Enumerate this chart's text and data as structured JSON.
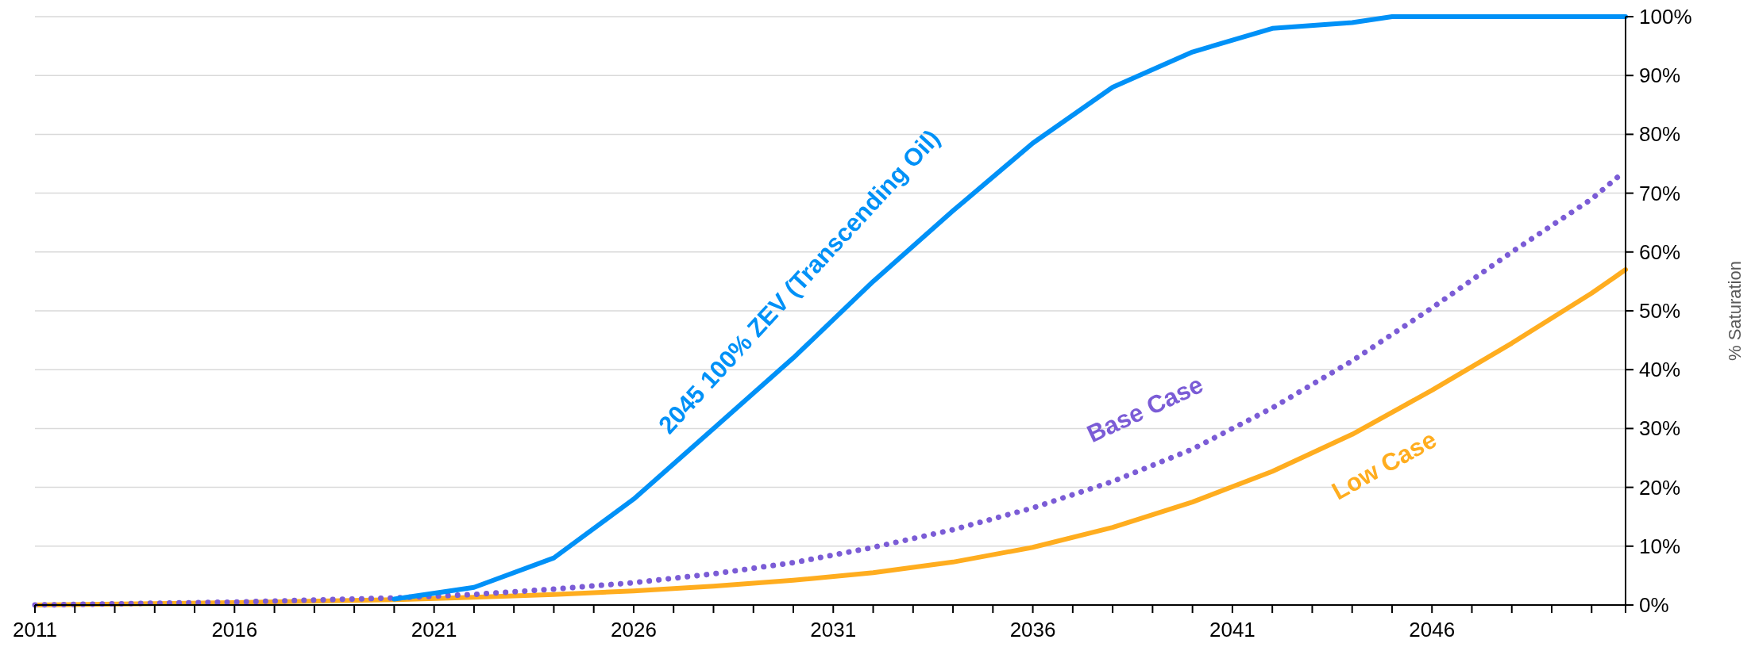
{
  "chart_data": {
    "type": "line",
    "ylabel": "% Saturation",
    "grid": "y",
    "marker": "none",
    "xlim": [
      2011,
      2050.85
    ],
    "ylim": [
      0,
      100
    ],
    "xticks": [
      2011,
      {
        "value": 2012,
        "label": null
      },
      {
        "value": 2013,
        "label": null
      },
      {
        "value": 2014,
        "label": null
      },
      {
        "value": 2015,
        "label": null
      },
      2016,
      {
        "value": 2017,
        "label": null
      },
      {
        "value": 2018,
        "label": null
      },
      {
        "value": 2019,
        "label": null
      },
      {
        "value": 2020,
        "label": null
      },
      2021,
      {
        "value": 2022,
        "label": null
      },
      {
        "value": 2023,
        "label": null
      },
      {
        "value": 2024,
        "label": null
      },
      {
        "value": 2025,
        "label": null
      },
      2026,
      {
        "value": 2027,
        "label": null
      },
      {
        "value": 2028,
        "label": null
      },
      {
        "value": 2029,
        "label": null
      },
      {
        "value": 2030,
        "label": null
      },
      2031,
      {
        "value": 2032,
        "label": null
      },
      {
        "value": 2033,
        "label": null
      },
      {
        "value": 2034,
        "label": null
      },
      {
        "value": 2035,
        "label": null
      },
      2036,
      {
        "value": 2037,
        "label": null
      },
      {
        "value": 2038,
        "label": null
      },
      {
        "value": 2039,
        "label": null
      },
      {
        "value": 2040,
        "label": null
      },
      2041,
      {
        "value": 2042,
        "label": null
      },
      {
        "value": 2043,
        "label": null
      },
      {
        "value": 2044,
        "label": null
      },
      {
        "value": 2045,
        "label": null
      },
      2046,
      {
        "value": 2047,
        "label": null
      },
      {
        "value": 2048,
        "label": null
      },
      {
        "value": 2049,
        "label": null
      },
      {
        "value": 2050,
        "label": null
      }
    ],
    "yticks": [
      {
        "value": 0,
        "label": "0%"
      },
      {
        "value": 10,
        "label": "10%"
      },
      {
        "value": 20,
        "label": "20%"
      },
      {
        "value": 30,
        "label": "30%"
      },
      {
        "value": 40,
        "label": "40%"
      },
      {
        "value": 50,
        "label": "50%"
      },
      {
        "value": 60,
        "label": "60%"
      },
      {
        "value": 70,
        "label": "70%"
      },
      {
        "value": 80,
        "label": "80%"
      },
      {
        "value": 90,
        "label": "90%"
      },
      {
        "value": 100,
        "label": "100%"
      }
    ],
    "series": [
      {
        "name": "Low Case",
        "color": "#ffad1f",
        "line_style": "solid",
        "x": [
          2011,
          2016,
          2020,
          2022,
          2024,
          2026,
          2028,
          2030,
          2032,
          2034,
          2036,
          2038,
          2040,
          2042,
          2044,
          2046,
          2048,
          2050,
          2050.85
        ],
        "values": [
          0,
          0.4,
          0.9,
          1.3,
          1.8,
          2.4,
          3.2,
          4.2,
          5.5,
          7.3,
          9.8,
          13.2,
          17.5,
          22.7,
          29,
          36.5,
          44.5,
          53,
          57
        ]
      },
      {
        "name": "Base Case",
        "color": "#7b5cd6",
        "line_style": "dotted",
        "x": [
          2011,
          2016,
          2020,
          2022,
          2024,
          2026,
          2028,
          2030,
          2032,
          2034,
          2036,
          2038,
          2040,
          2042,
          2044,
          2046,
          2048,
          2050,
          2050.7
        ],
        "values": [
          0,
          0.5,
          1.2,
          1.8,
          2.7,
          3.8,
          5.3,
          7.2,
          9.8,
          12.8,
          16.5,
          21,
          26.5,
          33.5,
          41.5,
          50.5,
          60,
          69,
          73
        ]
      },
      {
        "name": "2045 100% ZEV (Transcending Oil)",
        "color": "#0091f7",
        "line_style": "solid",
        "x": [
          2020,
          2022,
          2024,
          2026,
          2028,
          2030,
          2032,
          2034,
          2036,
          2038,
          2040,
          2042,
          2044,
          2045,
          2050.85
        ],
        "values": [
          1,
          3,
          8,
          18,
          30,
          42,
          55,
          67,
          78.5,
          88,
          94,
          98,
          99,
          100,
          100
        ]
      }
    ]
  }
}
